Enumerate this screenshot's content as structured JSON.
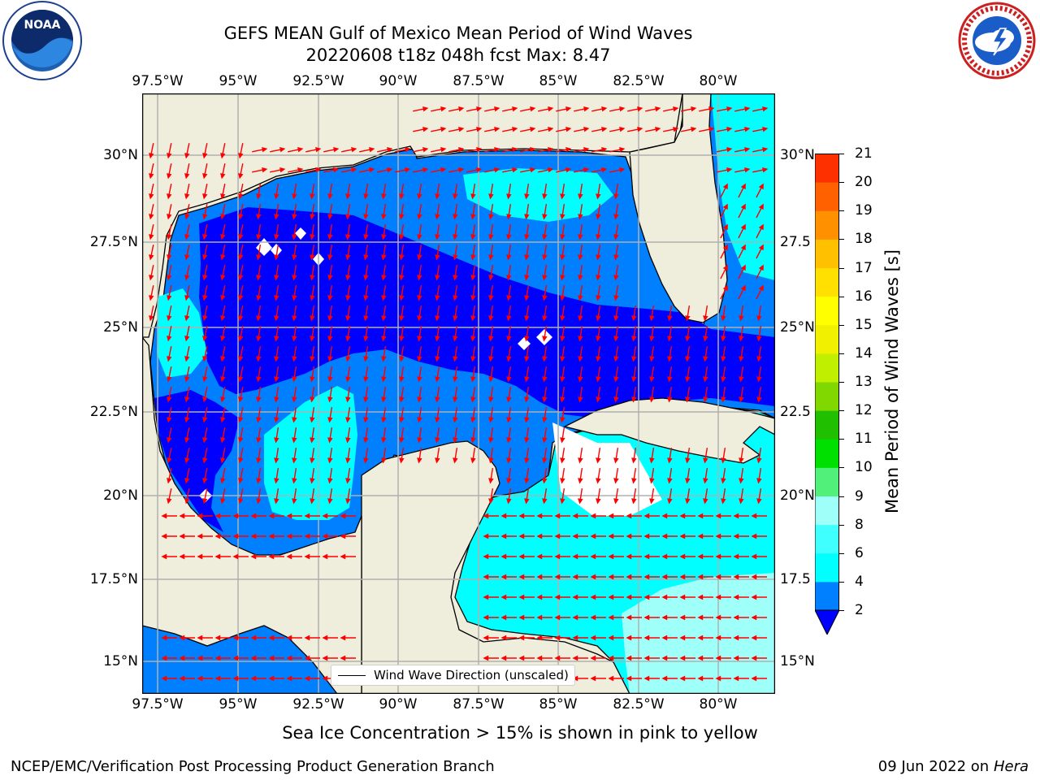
{
  "header": {
    "title_line1": "GEFS MEAN Gulf of Mexico Mean Period of Wind Waves",
    "title_line2": "20220608 t18z 048h fcst   Max: 8.47"
  },
  "logos": {
    "left": {
      "name": "noaa-logo",
      "text": "NOAA",
      "ring_text": "NATIONAL OCEANIC AND ATMOSPHERIC ADMINISTRATION · U.S. DEPARTMENT OF COMMERCE"
    },
    "right": {
      "name": "nws-logo",
      "ring_text": "NATIONAL WEATHER SERVICE"
    }
  },
  "map": {
    "lon_ticks": [
      "97.5°W",
      "95°W",
      "92.5°W",
      "90°W",
      "87.5°W",
      "85°W",
      "82.5°W",
      "80°W"
    ],
    "lat_ticks_left": [
      "30°N",
      "27.5°N",
      "25°N",
      "22.5°N",
      "20°N",
      "17.5°N",
      "15°N"
    ],
    "lat_ticks_right": [
      "30°N",
      "27.5",
      "25°N",
      "22.5",
      "20°N",
      "17.5",
      "15°N"
    ],
    "legend_label": "Wind Wave Direction (unscaled)",
    "colors": {
      "land": "#efeddb",
      "level_2_4": "#0000ff",
      "level_4_6": "#007ffe",
      "level_6_8": "#00ffff",
      "level_8_9": "#9ffff9",
      "arrows": "#ff0000",
      "grid": "#b0b0b0"
    }
  },
  "colorbar": {
    "label": "Mean Period of Wind Waves [s]",
    "ticks": [
      "2",
      "4",
      "6",
      "8",
      "9",
      "10",
      "11",
      "12",
      "13",
      "14",
      "15",
      "16",
      "17",
      "18",
      "19",
      "20",
      "21"
    ],
    "colors": [
      "#0080ff",
      "#00ffff",
      "#40ffff",
      "#9ffff9",
      "#50f07a",
      "#00e000",
      "#20c000",
      "#80d800",
      "#c0f000",
      "#f0f000",
      "#ffff00",
      "#ffe000",
      "#ffc000",
      "#ff9000",
      "#ff6000",
      "#ff3000",
      "#ff0000"
    ],
    "extend_color": "#0000ff"
  },
  "footer": {
    "ice_note": "Sea Ice Concentration > 15% is shown in pink to yellow",
    "branch": "NCEP/EMC/Verification Post Processing Product Generation Branch",
    "date": "09 Jun 2022 on",
    "machine": "Hera"
  }
}
